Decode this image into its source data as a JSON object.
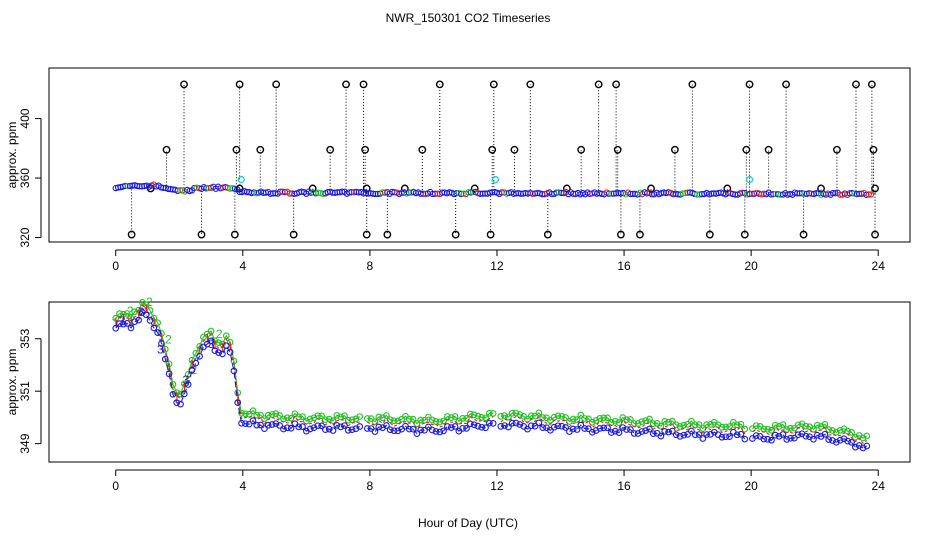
{
  "title": "NWR_150301  CO2 Timeseries",
  "xlabel": "Hour of Day (UTC)",
  "colors": {
    "black": "#000000",
    "red": "#e0201c",
    "green": "#22c022",
    "blue": "#1a1adc",
    "cyan": "#22cccc"
  },
  "chart_data": [
    {
      "type": "scatter",
      "panel": "top",
      "ylabel": "approx. ppm",
      "xlim": [
        -2.1,
        25
      ],
      "ylim": [
        317,
        434
      ],
      "xticks": [
        0,
        4,
        8,
        12,
        16,
        20,
        24
      ],
      "yticks": [
        320,
        360,
        400
      ],
      "xtick_labels": [
        "0",
        "4",
        "8",
        "12",
        "16",
        "20",
        "24"
      ],
      "ytick_labels": [
        "320",
        "360",
        "400"
      ],
      "spikes_high_x": [
        2.15,
        3.9,
        5.05,
        7.25,
        7.8,
        10.2,
        11.9,
        13.05,
        15.2,
        15.75,
        18.15,
        19.95,
        21.1,
        23.3,
        23.8
      ],
      "spikes_mid_x": [
        1.6,
        3.8,
        4.55,
        6.75,
        7.85,
        9.65,
        11.85,
        12.55,
        14.65,
        15.8,
        17.6,
        19.85,
        20.55,
        22.7,
        23.85
      ],
      "spikes_low_x": [
        0.5,
        2.7,
        3.75,
        5.6,
        7.9,
        8.55,
        10.7,
        11.8,
        13.6,
        15.9,
        16.5,
        18.7,
        19.8,
        21.65,
        23.9
      ],
      "spikes_small_x": [
        1.1,
        3.9,
        6.2,
        7.9,
        9.1,
        11.3,
        14.2,
        16.85,
        19.25,
        22.2,
        23.9
      ],
      "spike_values": {
        "high": 423,
        "mid": 379,
        "low": 322,
        "small": 353
      },
      "cyan_points": [
        [
          3.95,
          359
        ],
        [
          11.95,
          359
        ],
        [
          19.95,
          359
        ]
      ],
      "series": [
        {
          "name": "1",
          "color": "red"
        },
        {
          "name": "2",
          "color": "green"
        },
        {
          "name": "3",
          "color": "blue"
        }
      ]
    },
    {
      "type": "line",
      "panel": "bottom",
      "ylabel": "approx. ppm",
      "xlim": [
        -2.1,
        25
      ],
      "ylim": [
        348.3,
        354.4
      ],
      "xticks": [
        0,
        4,
        8,
        12,
        16,
        20,
        24
      ],
      "yticks": [
        349,
        351,
        353
      ],
      "xtick_labels": [
        "0",
        "4",
        "8",
        "12",
        "16",
        "20",
        "24"
      ],
      "ytick_labels": [
        "349",
        "351",
        "353"
      ],
      "gaps": [
        7.8,
        11.95,
        15.9,
        19.95
      ],
      "series": [
        {
          "name": "1",
          "color": "red",
          "offset": 0.22,
          "marker": "1"
        },
        {
          "name": "2",
          "color": "green",
          "offset": 0.38,
          "marker": "2"
        },
        {
          "name": "3",
          "color": "blue",
          "offset": 0.0,
          "marker": "3"
        }
      ],
      "profile_x": [
        0,
        0.5,
        0.95,
        1.3,
        1.55,
        1.75,
        1.95,
        2.2,
        2.45,
        2.7,
        2.95,
        3.25,
        3.55,
        3.75,
        3.9,
        4.1,
        6,
        8,
        10,
        12,
        14,
        16,
        18,
        19.95,
        20.05,
        22,
        23.3,
        23.75
      ],
      "profile_y": [
        353.4,
        353.6,
        353.9,
        353.4,
        352.2,
        351.2,
        350.5,
        350.8,
        352.0,
        352.6,
        352.8,
        352.5,
        352.7,
        351.5,
        350.0,
        349.75,
        349.6,
        349.6,
        349.5,
        349.75,
        349.6,
        349.5,
        349.35,
        349.3,
        349.2,
        349.3,
        349.0,
        348.7
      ]
    }
  ]
}
